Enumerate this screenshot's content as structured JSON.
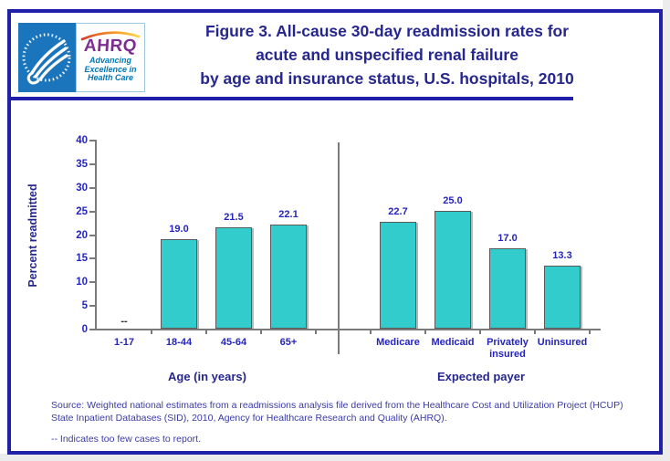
{
  "header": {
    "logo": {
      "org_name": "AHRQ",
      "tagline_lines": [
        "Advancing",
        "Excellence in",
        "Health Care"
      ]
    },
    "title_lines": [
      "Figure 3. All-cause 30-day readmission rates for",
      "acute and unspecified renal failure",
      "by age and insurance status, U.S. hospitals, 2010"
    ]
  },
  "chart_data": {
    "type": "bar",
    "title": "Figure 3. All-cause 30-day readmission rates for acute and unspecified renal failure by age and insurance status, U.S. hospitals, 2010",
    "ylabel": "Percent readmitted",
    "xlabel_groups": [
      "Age (in years)",
      "Expected payer"
    ],
    "ylim": [
      0,
      40
    ],
    "yticks": [
      0,
      5,
      10,
      15,
      20,
      25,
      30,
      35,
      40
    ],
    "grid": false,
    "legend": "none",
    "bar_color": "#33CCCC",
    "no_data_marker": "--",
    "groups": [
      {
        "label": "Age (in years)",
        "categories": [
          "1-17",
          "18-44",
          "45-64",
          "65+"
        ],
        "values": [
          null,
          19.0,
          21.5,
          22.1
        ],
        "value_labels": [
          "--",
          "19.0",
          "21.5",
          "22.1"
        ]
      },
      {
        "label": "Expected payer",
        "categories": [
          "Medicare",
          "Medicaid",
          "Privately insured",
          "Uninsured"
        ],
        "values": [
          22.7,
          25.0,
          17.0,
          13.3
        ],
        "value_labels": [
          "22.7",
          "25.0",
          "17.0",
          "13.3"
        ]
      }
    ]
  },
  "footer": {
    "source_lines": [
      "Source: Weighted national estimates from a readmissions analysis file derived from the Healthcare Cost and Utilization Project (HCUP)",
      "State Inpatient Databases (SID), 2010, Agency for Healthcare Research and Quality (AHRQ)."
    ],
    "note": "-- Indicates too few cases to report."
  },
  "colors": {
    "navy_border": "#2020A8",
    "title_text": "#26268F",
    "chart_label_text": "#2525BB",
    "bar_fill": "#33CCCC",
    "bar_border": "#595959",
    "axis_gray": "#7A7A7A",
    "source_text": "#3A3AA8",
    "hhs_logo_blue": "#1B75BC",
    "ahrq_purple": "#7B2D90",
    "tagline_teal": "#0077B6",
    "no_data_text": "#262626"
  }
}
